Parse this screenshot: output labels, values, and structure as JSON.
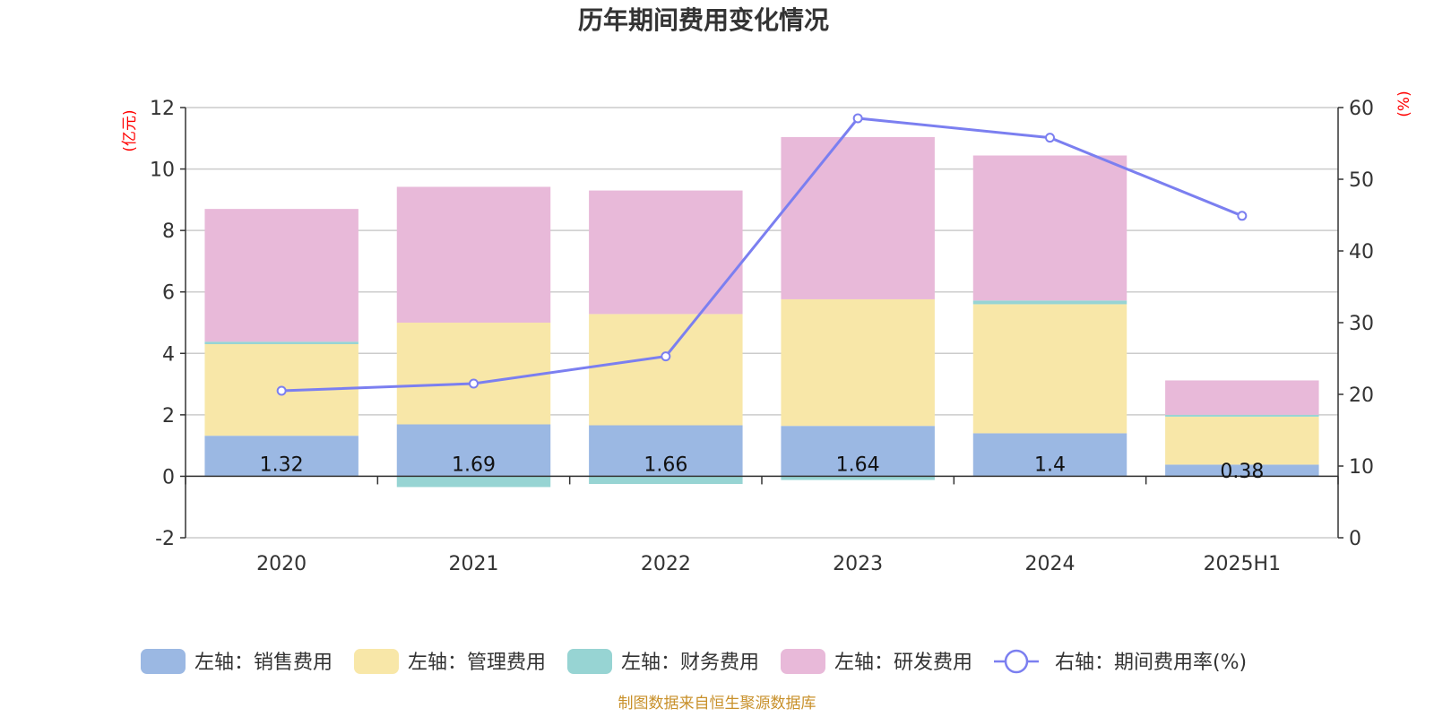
{
  "chart_data": {
    "type": "bar",
    "title": "历年期间费用变化情况",
    "categories": [
      "2020",
      "2021",
      "2022",
      "2023",
      "2024",
      "2025H1"
    ],
    "left_axis": {
      "unit": "(亿元)",
      "range": [
        -2,
        12
      ],
      "ticks": [
        -2,
        0,
        2,
        4,
        6,
        8,
        10,
        12
      ]
    },
    "right_axis": {
      "unit": "(%)",
      "range": [
        0,
        60
      ],
      "ticks": [
        0,
        10,
        20,
        30,
        40,
        50,
        60
      ]
    },
    "series": [
      {
        "name": "左轴：销售费用",
        "type": "bar",
        "axis": "left",
        "color": "#9bb8e3",
        "values": [
          1.32,
          1.69,
          1.66,
          1.64,
          1.4,
          0.38
        ],
        "labels": [
          "1.32",
          "1.69",
          "1.66",
          "1.64",
          "1.4",
          "0.38"
        ]
      },
      {
        "name": "左轴：管理费用",
        "type": "bar",
        "axis": "left",
        "color": "#f8e7a8",
        "values": [
          2.98,
          3.31,
          3.62,
          4.12,
          4.2,
          1.56
        ]
      },
      {
        "name": "左轴：财务费用",
        "type": "bar",
        "axis": "left",
        "color": "#97d4d3",
        "values": [
          0.08,
          -0.35,
          -0.25,
          -0.12,
          0.12,
          0.06
        ]
      },
      {
        "name": "左轴：研发费用",
        "type": "bar",
        "axis": "left",
        "color": "#e8b9d9",
        "values": [
          4.32,
          4.42,
          4.02,
          5.28,
          4.72,
          1.12
        ]
      },
      {
        "name": "右轴：期间费用率(%)",
        "type": "line",
        "axis": "right",
        "color": "#7b7ff0",
        "values": [
          20.5,
          21.5,
          25.3,
          58.5,
          55.8,
          44.9
        ]
      }
    ],
    "grid": true,
    "legend_position": "bottom"
  },
  "source": "制图数据来自恒生聚源数据库"
}
